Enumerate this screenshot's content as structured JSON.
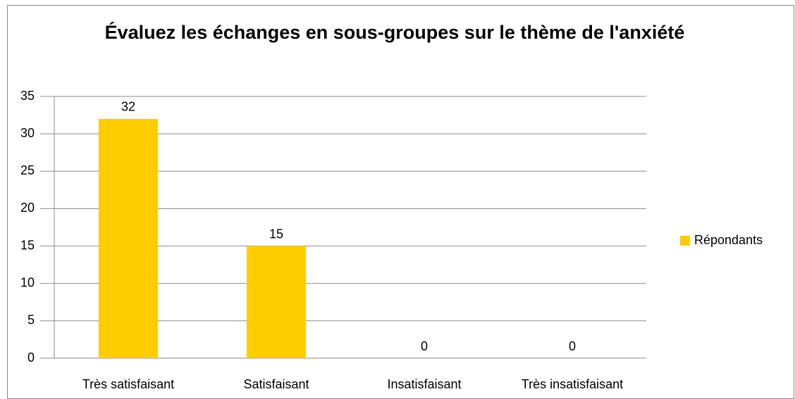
{
  "chart_data": {
    "type": "bar",
    "title": "Évaluez les échanges en sous-groupes sur le thème de l'anxiété",
    "categories": [
      "Très satisfaisant",
      "Satisfaisant",
      "Insatisfaisant",
      "Très insatisfaisant"
    ],
    "series": [
      {
        "name": "Répondants",
        "color": "#ffcc00",
        "values": [
          32,
          15,
          0,
          0
        ]
      }
    ],
    "ylim": [
      0,
      35
    ],
    "yticks": [
      0,
      5,
      10,
      15,
      20,
      25,
      30,
      35
    ],
    "grid": true,
    "legend": "right"
  }
}
